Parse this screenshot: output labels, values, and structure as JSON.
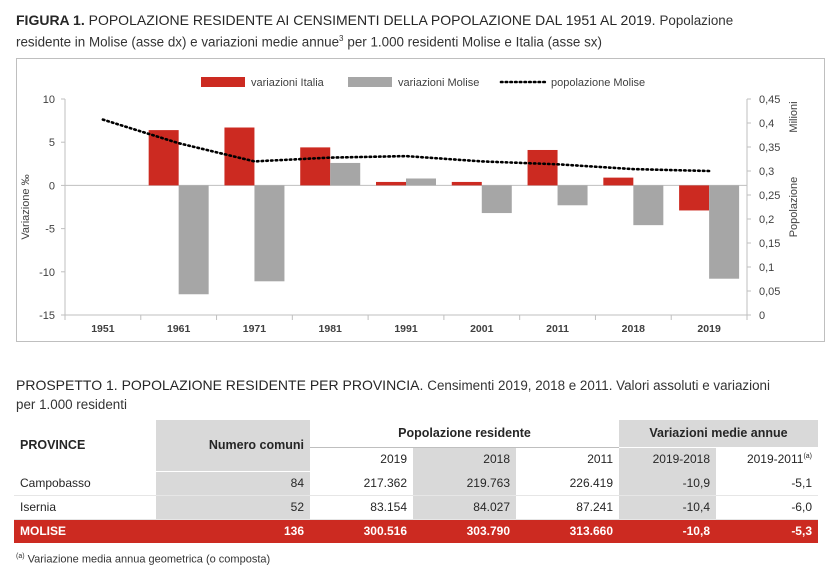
{
  "figure": {
    "label": "FIGURA 1.",
    "title": "POPOLAZIONE RESIDENTE AI CENSIMENTI DELLA POPOLAZIONE DAL 1951 AL 2019.",
    "subtitle_a": "Popolazione",
    "subtitle_b": "residente in Molise (asse dx) e variazioni medie annue",
    "subtitle_sup": "3",
    "subtitle_c": "per 1.000 residenti Molise e Italia (asse sx)"
  },
  "chart_data": {
    "type": "bar",
    "categories": [
      "1951",
      "1961",
      "1971",
      "1981",
      "1991",
      "2001",
      "2011",
      "2018",
      "2019"
    ],
    "series": [
      {
        "name": "variazioni Italia",
        "kind": "bar",
        "axis": "left",
        "color": "#cc2a21",
        "values": [
          null,
          6.4,
          6.7,
          4.4,
          0.4,
          0.4,
          4.1,
          0.9,
          -2.9
        ]
      },
      {
        "name": "variazioni Molise",
        "kind": "bar",
        "axis": "left",
        "color": "#a6a6a6",
        "values": [
          null,
          -12.6,
          -11.1,
          2.6,
          0.8,
          -3.2,
          -2.3,
          -4.6,
          -10.8
        ]
      },
      {
        "name": "popolazione Molise",
        "kind": "line",
        "style": "dotted",
        "axis": "right",
        "color": "#000000",
        "values": [
          0.407,
          0.358,
          0.32,
          0.328,
          0.331,
          0.32,
          0.314,
          0.304,
          0.3
        ]
      }
    ],
    "ylabel_left": "Variazione ‰",
    "ylim_left": [
      -15,
      10
    ],
    "yticks_left": [
      "10",
      "5",
      "0",
      "-5",
      "-10",
      "-15"
    ],
    "ylabel_right_1": "Milioni",
    "ylabel_right_2": "Popolazione",
    "ylim_right": [
      0,
      0.45
    ],
    "yticks_right": [
      "0,45",
      "0,4",
      "0,35",
      "0,3",
      "0,25",
      "0,2",
      "0,15",
      "0,1",
      "0,05",
      "0"
    ],
    "legend_position": "top-center",
    "grid": false
  },
  "prospetto": {
    "label": "PROSPETTO 1.",
    "title": "POPOLAZIONE RESIDENTE PER PROVINCIA.",
    "subtitle_a": "Censimenti 2019, 2018 e 2011. Valori assoluti e variazioni",
    "subtitle_b": "per 1.000 residenti",
    "headers": {
      "province": "PROVINCE",
      "comuni": "Numero comuni",
      "popolazione": "Popolazione residente",
      "variazioni": "Variazioni medie annue",
      "y2019": "2019",
      "y2018": "2018",
      "y2011": "2011",
      "v2019_2018": "2019-2018",
      "v2019_2011": "2019-2011",
      "v2019_2011_sup": "(a)"
    },
    "rows": [
      {
        "province": "Campobasso",
        "comuni": "84",
        "p2019": "217.362",
        "p2018": "219.763",
        "p2011": "226.419",
        "v1": "-10,9",
        "v2": "-5,1"
      },
      {
        "province": "Isernia",
        "comuni": "52",
        "p2019": "83.154",
        "p2018": "84.027",
        "p2011": "87.241",
        "v1": "-10,4",
        "v2": "-6,0"
      }
    ],
    "total": {
      "province": "MOLISE",
      "comuni": "136",
      "p2019": "300.516",
      "p2018": "303.790",
      "p2011": "313.660",
      "v1": "-10,8",
      "v2": "-5,3"
    },
    "footnote_sup": "(a)",
    "footnote": "Variazione media annua geometrica (o composta)"
  }
}
